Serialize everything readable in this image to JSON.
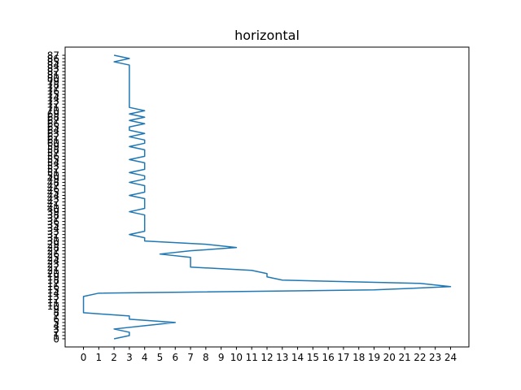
{
  "chart_data": {
    "type": "line",
    "orientation": "horizontal",
    "title": "horizontal",
    "xlabel": "",
    "ylabel": "",
    "xlim": [
      -1.2,
      25.2
    ],
    "ylim": [
      89.5,
      -2.5
    ],
    "x_ticks": [
      0,
      1,
      2,
      3,
      4,
      5,
      6,
      7,
      8,
      9,
      10,
      11,
      12,
      13,
      14,
      15,
      16,
      17,
      18,
      19,
      20,
      21,
      22,
      23,
      24
    ],
    "y_ticks": [
      0,
      1,
      2,
      3,
      4,
      5,
      6,
      7,
      8,
      9,
      10,
      11,
      12,
      13,
      14,
      15,
      16,
      17,
      18,
      19,
      20,
      21,
      22,
      23,
      24,
      25,
      26,
      27,
      28,
      29,
      30,
      31,
      32,
      33,
      34,
      35,
      36,
      37,
      38,
      39,
      40,
      41,
      42,
      43,
      44,
      45,
      46,
      47,
      48,
      49,
      50,
      51,
      52,
      53,
      54,
      55,
      56,
      57,
      58,
      59,
      60,
      61,
      62,
      63,
      64,
      65,
      66,
      67,
      68,
      69,
      70,
      71,
      72,
      73,
      74,
      75,
      76,
      77,
      78,
      79,
      80,
      81,
      82,
      83,
      84,
      85,
      86,
      87
    ],
    "grid": false,
    "legend": "none",
    "color": "#1f77b4",
    "series": [
      {
        "name": "",
        "y": [
          0,
          1,
          2,
          3,
          4,
          5,
          6,
          7,
          8,
          9,
          10,
          11,
          12,
          13,
          14,
          15,
          16,
          17,
          18,
          19,
          20,
          21,
          22,
          23,
          24,
          25,
          26,
          27,
          28,
          29,
          30,
          31,
          32,
          33,
          34,
          35,
          36,
          37,
          38,
          39,
          40,
          41,
          42,
          43,
          44,
          45,
          46,
          47,
          48,
          49,
          50,
          51,
          52,
          53,
          54,
          55,
          56,
          57,
          58,
          59,
          60,
          61,
          62,
          63,
          64,
          65,
          66,
          67,
          68,
          69,
          70,
          71,
          72,
          73,
          74,
          75,
          76,
          77,
          78,
          79,
          80,
          81,
          82,
          83,
          84,
          85,
          86,
          87
        ],
        "x": [
          2,
          3,
          3,
          2,
          4,
          6,
          3,
          3,
          0,
          0,
          0,
          0,
          0,
          0,
          1,
          19,
          24,
          22,
          13,
          12,
          12,
          11,
          7,
          7,
          7,
          7,
          5,
          7,
          10,
          8,
          4,
          4,
          3,
          4,
          4,
          4,
          4,
          4,
          4,
          3,
          4,
          4,
          4,
          4,
          3,
          4,
          4,
          4,
          3,
          4,
          4,
          3,
          4,
          4,
          4,
          3,
          4,
          4,
          4,
          3,
          4,
          4,
          3,
          4,
          3,
          3,
          4,
          3,
          4,
          3,
          4,
          3,
          3,
          3,
          3,
          3,
          3,
          3,
          3,
          3,
          3,
          3,
          3,
          3,
          3,
          2,
          3,
          2
        ]
      }
    ]
  }
}
